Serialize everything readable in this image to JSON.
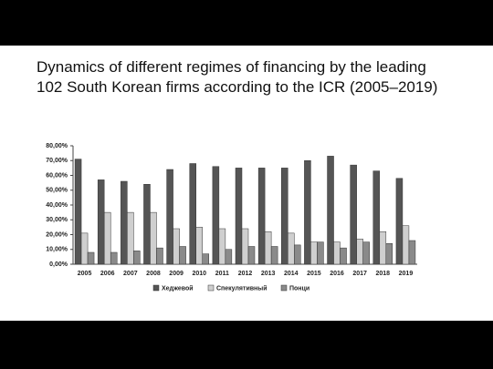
{
  "chart_data": {
    "type": "bar",
    "title": "Dynamics of different regimes of financing by the leading 102 South Korean firms according to the ICR (2005–2019)",
    "categories": [
      "2005",
      "2006",
      "2007",
      "2008",
      "2009",
      "2010",
      "2011",
      "2012",
      "2013",
      "2014",
      "2015",
      "2016",
      "2017",
      "2018",
      "2019"
    ],
    "series": [
      {
        "name": "Хеджевой",
        "color": "#555555",
        "values": [
          71,
          57,
          56,
          54,
          64,
          68,
          66,
          65,
          65,
          65,
          70,
          73,
          67,
          63,
          58
        ]
      },
      {
        "name": "Спекулятивный",
        "color": "#cfcfcf",
        "values": [
          21,
          35,
          35,
          35,
          24,
          25,
          24,
          24,
          22,
          21,
          15,
          15,
          17,
          22,
          26
        ]
      },
      {
        "name": "Понци",
        "color": "#8a8a8a",
        "values": [
          8,
          8,
          9,
          11,
          12,
          7,
          10,
          12,
          12,
          13,
          15,
          11,
          15,
          14,
          16
        ]
      }
    ],
    "ylim": [
      0,
      80
    ],
    "yticks": [
      {
        "value": 0,
        "label": "0,00%"
      },
      {
        "value": 10,
        "label": "10,00%"
      },
      {
        "value": 20,
        "label": "20,00%"
      },
      {
        "value": 30,
        "label": "30,00%"
      },
      {
        "value": 40,
        "label": "40,00%"
      },
      {
        "value": 50,
        "label": "50,00%"
      },
      {
        "value": 60,
        "label": "60,00%"
      },
      {
        "value": 70,
        "label": "70,00%"
      },
      {
        "value": 80,
        "label": "80,00%"
      }
    ]
  }
}
